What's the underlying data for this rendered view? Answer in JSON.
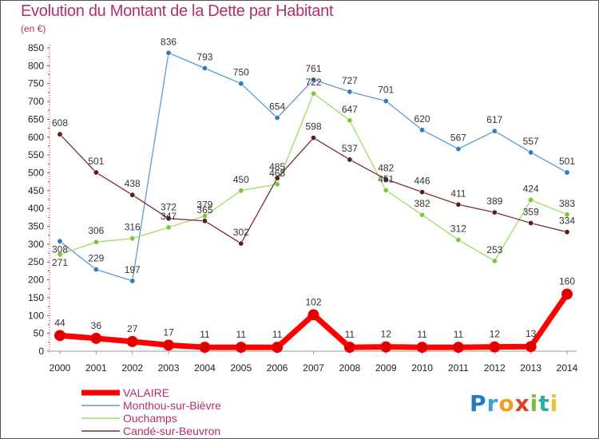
{
  "title": "Evolution du Montant de la Dette par Habitant",
  "unit": "(en €)",
  "logo": "Proxiti",
  "chart_data": {
    "type": "line",
    "title": "Evolution du Montant de la Dette par Habitant",
    "ylabel": "(en €)",
    "xlabel": "",
    "ylim": [
      0,
      850
    ],
    "yticks": [
      0,
      50,
      100,
      150,
      200,
      250,
      300,
      350,
      400,
      450,
      500,
      550,
      600,
      650,
      700,
      750,
      800,
      850
    ],
    "grid": false,
    "legend": "bottom-left",
    "x": [
      "2000",
      "2001",
      "2002",
      "2003",
      "2004",
      "2005",
      "2006",
      "2007",
      "2008",
      "2009",
      "2010",
      "2011",
      "2012",
      "2013",
      "2014"
    ],
    "series": [
      {
        "name": "Monthou-sur-Bièvre",
        "color": "#5b9bd5",
        "marker": "#2f7bbf",
        "values": [
          308,
          229,
          197,
          836,
          793,
          750,
          654,
          761,
          727,
          701,
          620,
          567,
          617,
          557,
          501
        ]
      },
      {
        "name": "Ouchamps",
        "color": "#9ddc6a",
        "marker": "#7cc63a",
        "values": [
          271,
          306,
          316,
          347,
          379,
          450,
          468,
          722,
          647,
          451,
          382,
          312,
          253,
          424,
          383
        ]
      },
      {
        "name": "Candé-sur-Beuvron",
        "color": "#7a2e2e",
        "marker": "#5a1e1e",
        "values": [
          608,
          501,
          438,
          372,
          365,
          302,
          485,
          598,
          537,
          482,
          446,
          411,
          389,
          359,
          334
        ]
      },
      {
        "name": "VALAIRE",
        "color": "#ff0000",
        "marker": "#dd0000",
        "values": [
          44,
          36,
          27,
          17,
          11,
          11,
          11,
          102,
          11,
          12,
          11,
          11,
          12,
          13,
          160
        ]
      }
    ],
    "labels": {
      "Monthou-sur-Bièvre": [
        "308",
        "229",
        "197",
        "836",
        "793",
        "750",
        "654",
        "761",
        "727",
        "701",
        "620",
        "567",
        "617",
        "557",
        "501"
      ],
      "Ouchamps": [
        "271",
        "306",
        "316",
        "347",
        "379",
        "450",
        "468",
        "722",
        "647",
        "451",
        "382",
        "312",
        "253",
        "424",
        "383"
      ],
      "Candé-sur-Beuvron": [
        "608",
        "501",
        "438",
        "372",
        "365",
        "302",
        "485",
        "598",
        "537",
        "482",
        "446",
        "411",
        "389",
        "359",
        "334"
      ],
      "VALAIRE": [
        "44",
        "36",
        "27",
        "17",
        "11",
        "11",
        "11",
        "102",
        "11",
        "12",
        "11",
        "11",
        "12",
        "13",
        "160"
      ]
    },
    "legend_entries": [
      "VALAIRE",
      "Monthou-sur-Bièvre",
      "Ouchamps",
      "Candé-sur-Beuvron"
    ]
  }
}
